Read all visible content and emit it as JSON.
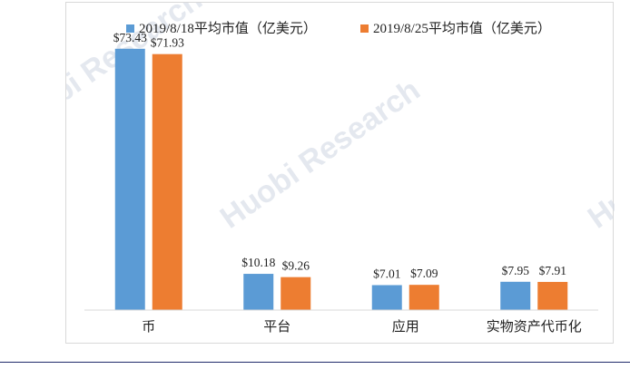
{
  "chart_data": {
    "type": "bar",
    "title": "",
    "xlabel": "",
    "ylabel": "",
    "categories": [
      "币",
      "平台",
      "应用",
      "实物资产代币化"
    ],
    "series": [
      {
        "name": "2019/8/18平均市值（亿美元）",
        "color": "#5b9bd5",
        "values": [
          73.43,
          10.18,
          7.01,
          7.95
        ],
        "labels": [
          "$73.43",
          "$10.18",
          "$7.01",
          "$7.95"
        ]
      },
      {
        "name": "2019/8/25平均市值（亿美元）",
        "color": "#ed7d31",
        "values": [
          71.93,
          9.26,
          7.09,
          7.91
        ],
        "labels": [
          "$71.93",
          "$9.26",
          "$7.09",
          "$7.91"
        ]
      }
    ],
    "ylim": [
      0,
      80
    ],
    "grid": false,
    "legend_position": "top"
  },
  "watermark": {
    "text": "Huobi Research"
  }
}
